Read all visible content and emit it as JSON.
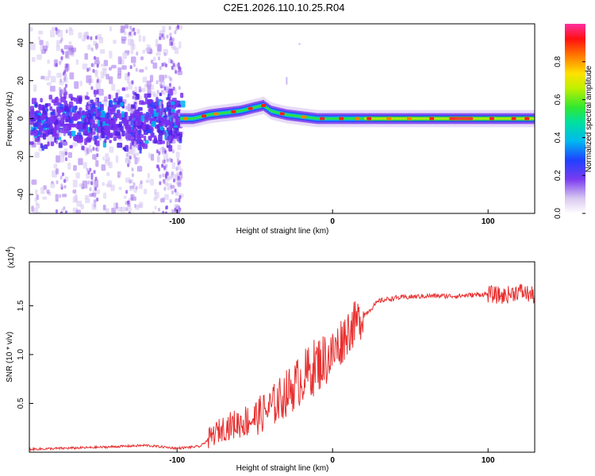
{
  "title": "C2E1.2026.110.10.25.R04",
  "chart_data": [
    {
      "type": "heatmap",
      "xlabel": "Height of straight line (km)",
      "ylabel": "Frequency (Hz)",
      "xlim": [
        -195,
        130
      ],
      "ylim": [
        -50,
        50
      ],
      "x_ticks": [
        -100,
        0,
        100
      ],
      "y_ticks": [
        -40,
        -20,
        0,
        20,
        40
      ],
      "colorbar": {
        "label": "Normalized spectral amplitude",
        "range": [
          0.0,
          1.0
        ],
        "ticks": [
          0.0,
          0.2,
          0.4,
          0.6,
          0.8
        ]
      },
      "ridge": {
        "x": [
          -98,
          -90,
          -80,
          -70,
          -60,
          -50,
          -45,
          -40,
          -30,
          -20,
          -10,
          0,
          20,
          40,
          60,
          80,
          100,
          120,
          130
        ],
        "freq_hz": [
          0,
          0,
          2,
          3,
          4,
          6,
          7,
          4,
          2,
          1,
          0,
          0,
          0,
          0,
          0,
          0,
          0,
          0,
          0
        ]
      },
      "noise_region_km": [
        -195,
        -98
      ]
    },
    {
      "type": "line",
      "xlabel": "Height of straight line (km)",
      "ylabel": "SNR (10 * v/v)",
      "y_multiplier": "(x10",
      "y_multiplier_exp": "4",
      "y_multiplier_close": ")",
      "xlim": [
        -195,
        130
      ],
      "ylim": [
        0,
        1.95
      ],
      "x_ticks": [
        -100,
        0,
        100
      ],
      "y_ticks": [
        0.5,
        1.0,
        1.5
      ],
      "y_tick_labels": [
        "0.5",
        "1.0",
        "1.5"
      ],
      "series": [
        {
          "name": "SNR",
          "color": "#e83030",
          "x": [
            -195,
            -150,
            -120,
            -100,
            -85,
            -75,
            -70,
            -60,
            -50,
            -40,
            -30,
            -20,
            -10,
            0,
            10,
            20,
            30,
            40,
            60,
            80,
            100,
            110,
            120,
            130
          ],
          "y": [
            0.03,
            0.05,
            0.07,
            0.04,
            0.06,
            0.2,
            0.25,
            0.3,
            0.35,
            0.45,
            0.6,
            0.75,
            0.9,
            1.0,
            1.25,
            1.4,
            1.55,
            1.58,
            1.6,
            1.6,
            1.62,
            1.6,
            1.65,
            1.6
          ]
        }
      ]
    }
  ]
}
